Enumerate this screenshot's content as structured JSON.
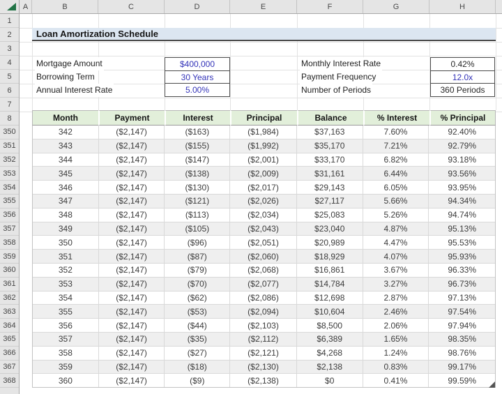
{
  "sheet": {
    "title": "Loan Amortization Schedule",
    "column_letters": [
      "A",
      "B",
      "C",
      "D",
      "E",
      "F",
      "G",
      "H"
    ],
    "row_numbers_top": [
      "1",
      "2",
      "3",
      "4",
      "5",
      "6",
      "7",
      "8"
    ]
  },
  "inputs": {
    "left": [
      {
        "label": "Mortgage Amount",
        "value": "$400,000",
        "style": "blue"
      },
      {
        "label": "Borrowing Term",
        "value": "30 Years",
        "style": "blue"
      },
      {
        "label": "Annual Interest Rate",
        "value": "5.00%",
        "style": "blue"
      }
    ],
    "right": [
      {
        "label": "Monthly Interest Rate",
        "value": "0.42%",
        "style": "dark"
      },
      {
        "label": "Payment Frequency",
        "value": "12.0x",
        "style": "blue"
      },
      {
        "label": "Number of Periods",
        "value": "360 Periods",
        "style": "dark"
      }
    ]
  },
  "table": {
    "columns": [
      "Month",
      "Payment",
      "Interest",
      "Principal",
      "Balance",
      "% Interest",
      "% Principal"
    ],
    "rows": [
      {
        "row": "350",
        "cells": [
          "342",
          "($2,147)",
          "($163)",
          "($1,984)",
          "$37,163",
          "7.60%",
          "92.40%"
        ]
      },
      {
        "row": "351",
        "cells": [
          "343",
          "($2,147)",
          "($155)",
          "($1,992)",
          "$35,170",
          "7.21%",
          "92.79%"
        ]
      },
      {
        "row": "352",
        "cells": [
          "344",
          "($2,147)",
          "($147)",
          "($2,001)",
          "$33,170",
          "6.82%",
          "93.18%"
        ]
      },
      {
        "row": "353",
        "cells": [
          "345",
          "($2,147)",
          "($138)",
          "($2,009)",
          "$31,161",
          "6.44%",
          "93.56%"
        ]
      },
      {
        "row": "354",
        "cells": [
          "346",
          "($2,147)",
          "($130)",
          "($2,017)",
          "$29,143",
          "6.05%",
          "93.95%"
        ]
      },
      {
        "row": "355",
        "cells": [
          "347",
          "($2,147)",
          "($121)",
          "($2,026)",
          "$27,117",
          "5.66%",
          "94.34%"
        ]
      },
      {
        "row": "356",
        "cells": [
          "348",
          "($2,147)",
          "($113)",
          "($2,034)",
          "$25,083",
          "5.26%",
          "94.74%"
        ]
      },
      {
        "row": "357",
        "cells": [
          "349",
          "($2,147)",
          "($105)",
          "($2,043)",
          "$23,040",
          "4.87%",
          "95.13%"
        ]
      },
      {
        "row": "358",
        "cells": [
          "350",
          "($2,147)",
          "($96)",
          "($2,051)",
          "$20,989",
          "4.47%",
          "95.53%"
        ]
      },
      {
        "row": "359",
        "cells": [
          "351",
          "($2,147)",
          "($87)",
          "($2,060)",
          "$18,929",
          "4.07%",
          "95.93%"
        ]
      },
      {
        "row": "360",
        "cells": [
          "352",
          "($2,147)",
          "($79)",
          "($2,068)",
          "$16,861",
          "3.67%",
          "96.33%"
        ]
      },
      {
        "row": "361",
        "cells": [
          "353",
          "($2,147)",
          "($70)",
          "($2,077)",
          "$14,784",
          "3.27%",
          "96.73%"
        ]
      },
      {
        "row": "362",
        "cells": [
          "354",
          "($2,147)",
          "($62)",
          "($2,086)",
          "$12,698",
          "2.87%",
          "97.13%"
        ]
      },
      {
        "row": "363",
        "cells": [
          "355",
          "($2,147)",
          "($53)",
          "($2,094)",
          "$10,604",
          "2.46%",
          "97.54%"
        ]
      },
      {
        "row": "364",
        "cells": [
          "356",
          "($2,147)",
          "($44)",
          "($2,103)",
          "$8,500",
          "2.06%",
          "97.94%"
        ]
      },
      {
        "row": "365",
        "cells": [
          "357",
          "($2,147)",
          "($35)",
          "($2,112)",
          "$6,389",
          "1.65%",
          "98.35%"
        ]
      },
      {
        "row": "366",
        "cells": [
          "358",
          "($2,147)",
          "($27)",
          "($2,121)",
          "$4,268",
          "1.24%",
          "98.76%"
        ]
      },
      {
        "row": "367",
        "cells": [
          "359",
          "($2,147)",
          "($18)",
          "($2,130)",
          "$2,138",
          "0.83%",
          "99.17%"
        ]
      },
      {
        "row": "368",
        "cells": [
          "360",
          "($2,147)",
          "($9)",
          "($2,138)",
          "$0",
          "0.41%",
          "99.59%"
        ]
      }
    ]
  },
  "colors": {
    "title_bg": "#dce6f1",
    "title_underline": "#4a4a4a",
    "input_value_blue": "#3333b8",
    "table_header_green": "#e2efda",
    "band_gray": "#efefef",
    "strip_gray": "#e5e5e5",
    "select_all_green": "#217346"
  }
}
